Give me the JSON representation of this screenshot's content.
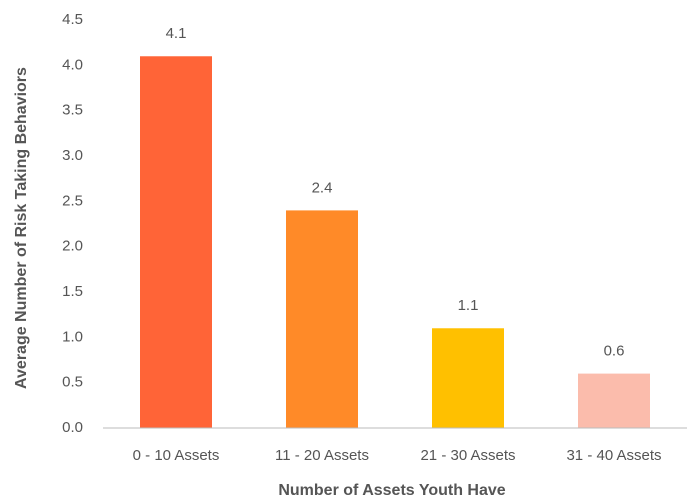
{
  "chart_data": {
    "type": "bar",
    "x_label": "Number of Assets Youth Have",
    "y_label": "Average Number of Risk Taking Behaviors",
    "categories": [
      "0 - 10 Assets",
      "11 - 20 Assets",
      "21 - 30 Assets",
      "31 - 40 Assets"
    ],
    "values": [
      4.1,
      2.4,
      1.1,
      0.6
    ],
    "colors": [
      "#ff6437",
      "#ff8a28",
      "#ffc000",
      "#fbbcac"
    ],
    "ylim": [
      0,
      4.5
    ],
    "yticks": [
      {
        "value": 0,
        "label": "0.0"
      },
      0.5,
      {
        "value": 1,
        "label": "1.0"
      },
      1.5,
      {
        "value": 2,
        "label": "2.0"
      },
      2.5,
      {
        "value": 3,
        "label": "3.0"
      },
      3.5,
      {
        "value": 4,
        "label": "4.0"
      },
      4.5
    ],
    "grid": false
  }
}
